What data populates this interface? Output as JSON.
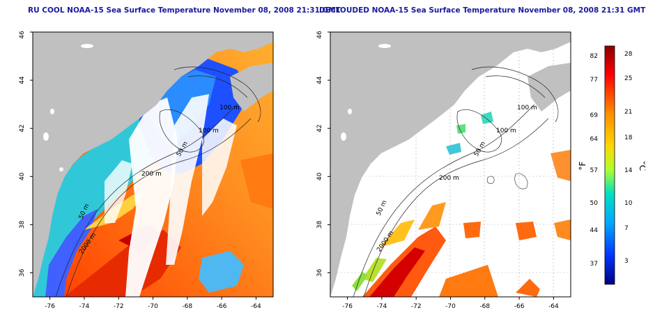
{
  "panels": [
    {
      "title": "RU COOL NOAA-15 Sea Surface Temperature November 08, 2008 21:31 GMT",
      "mode": "cloudy"
    },
    {
      "title": "DECLOUDED NOAA-15 Sea Surface Temperature November 08, 2008 21:31 GMT",
      "mode": "declouded"
    }
  ],
  "map": {
    "lon_ticks": [
      "-76",
      "-74",
      "-72",
      "-70",
      "-68",
      "-66",
      "-64"
    ],
    "lat_ticks": [
      "36",
      "38",
      "40",
      "42",
      "44",
      "46"
    ],
    "lon_range": [
      -77,
      -63
    ],
    "lat_range": [
      35,
      46
    ],
    "contour_labels": [
      "100 m",
      "100 m",
      "50 m",
      "200 m",
      "50 m",
      "2000 m"
    ],
    "land_color": "#c0c0c0",
    "cloud_color": "#ffffff"
  },
  "colorbar": {
    "fahrenheit_label": "°F",
    "celsius_label": "°C",
    "fahrenheit_ticks": [
      "82",
      "77",
      "69",
      "64",
      "57",
      "50",
      "44",
      "37"
    ],
    "celsius_ticks": [
      "28",
      "25",
      "21",
      "18",
      "14",
      "10",
      "7",
      "3"
    ],
    "colors": [
      "#ff0000",
      "#ff8c00",
      "#ffd700",
      "#adff2f",
      "#00e0c0",
      "#00aaff",
      "#0033ff",
      "#000080"
    ]
  }
}
